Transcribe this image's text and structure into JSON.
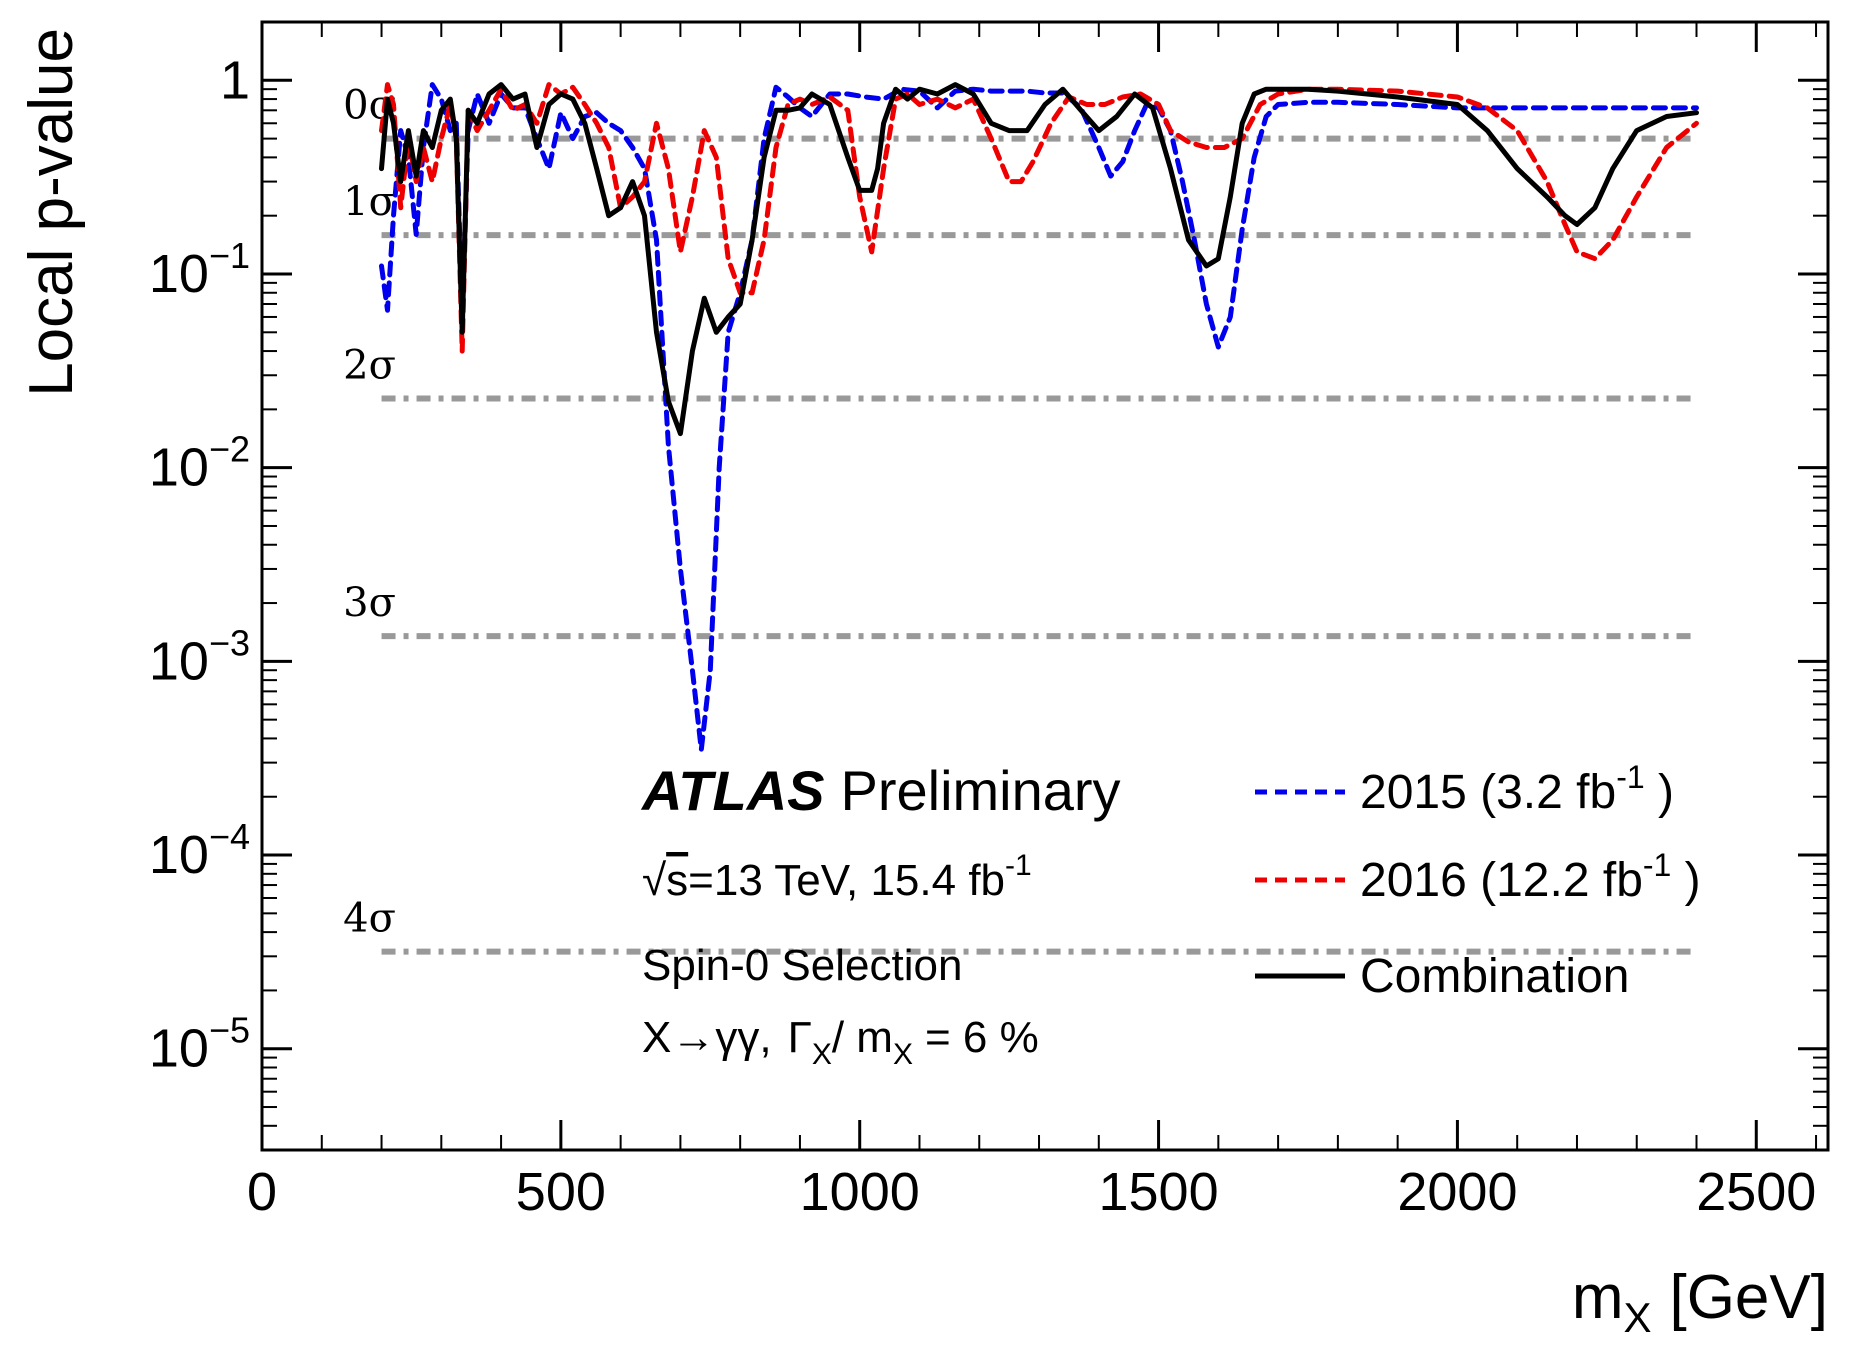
{
  "chart_data": {
    "type": "line",
    "xlabel_main": "m",
    "xlabel_sub": "X",
    "xlabel_unit": "[GeV]",
    "ylabel": "Local p-value",
    "xlim": [
      0,
      2620
    ],
    "ylim": [
      3e-06,
      2
    ],
    "yscale": "log",
    "x_ticks": [
      0,
      500,
      1000,
      1500,
      2000,
      2500
    ],
    "x_tick_labels": [
      "0",
      "500",
      "1000",
      "1500",
      "2000",
      "2500"
    ],
    "y_major": [
      {
        "value": 1,
        "base": "1",
        "exp": ""
      },
      {
        "value": 0.1,
        "base": "10",
        "exp": "−1"
      },
      {
        "value": 0.01,
        "base": "10",
        "exp": "−2"
      },
      {
        "value": 0.001,
        "base": "10",
        "exp": "−3"
      },
      {
        "value": 0.0001,
        "base": "10",
        "exp": "−4"
      },
      {
        "value": 1e-05,
        "base": "10",
        "exp": "−5"
      }
    ],
    "sigma_lines": [
      {
        "label": "0σ",
        "p": 0.5
      },
      {
        "label": "1σ",
        "p": 0.1587
      },
      {
        "label": "2σ",
        "p": 0.02275
      },
      {
        "label": "3σ",
        "p": 0.00135
      },
      {
        "label": "4σ",
        "p": 3.17e-05
      }
    ],
    "grid": false,
    "legend_position": "bottom-right",
    "series": [
      {
        "name": "2015 (3.2 fb",
        "name_sup": "-1",
        "name_suffix": " )",
        "color": "#0000ee",
        "style": "dashed",
        "x": [
          200,
          210,
          220,
          232,
          245,
          258,
          270,
          285,
          300,
          315,
          325,
          335,
          345,
          360,
          380,
          400,
          420,
          440,
          460,
          480,
          500,
          520,
          540,
          560,
          580,
          600,
          620,
          640,
          660,
          680,
          700,
          720,
          735,
          750,
          765,
          780,
          800,
          820,
          840,
          860,
          880,
          900,
          920,
          950,
          980,
          1010,
          1040,
          1070,
          1100,
          1130,
          1160,
          1190,
          1220,
          1250,
          1280,
          1310,
          1340,
          1370,
          1400,
          1420,
          1440,
          1460,
          1480,
          1500,
          1520,
          1540,
          1560,
          1580,
          1600,
          1620,
          1640,
          1660,
          1680,
          1700,
          1750,
          1800,
          1900,
          2000,
          2050,
          2100,
          2200,
          2300,
          2400
        ],
        "values": [
          0.11,
          0.065,
          0.2,
          0.55,
          0.4,
          0.16,
          0.45,
          0.95,
          0.8,
          0.55,
          0.6,
          0.06,
          0.55,
          0.85,
          0.6,
          0.85,
          0.72,
          0.72,
          0.5,
          0.35,
          0.68,
          0.5,
          0.65,
          0.68,
          0.6,
          0.55,
          0.45,
          0.35,
          0.15,
          0.013,
          0.003,
          0.0009,
          0.00035,
          0.0009,
          0.01,
          0.05,
          0.08,
          0.15,
          0.5,
          0.92,
          0.82,
          0.72,
          0.65,
          0.85,
          0.85,
          0.82,
          0.8,
          0.9,
          0.88,
          0.72,
          0.88,
          0.9,
          0.88,
          0.88,
          0.88,
          0.86,
          0.86,
          0.72,
          0.45,
          0.32,
          0.38,
          0.55,
          0.75,
          0.72,
          0.55,
          0.3,
          0.15,
          0.07,
          0.042,
          0.06,
          0.17,
          0.4,
          0.65,
          0.75,
          0.77,
          0.77,
          0.75,
          0.72,
          0.72,
          0.72,
          0.72,
          0.72,
          0.72
        ]
      },
      {
        "name": "2016 (12.2 fb",
        "name_sup": "-1",
        "name_suffix": " )",
        "color": "#ee0000",
        "style": "dashed",
        "x": [
          200,
          210,
          220,
          232,
          245,
          258,
          270,
          285,
          300,
          315,
          325,
          335,
          345,
          360,
          380,
          400,
          420,
          440,
          460,
          480,
          500,
          520,
          540,
          560,
          580,
          600,
          620,
          640,
          660,
          680,
          700,
          720,
          740,
          760,
          780,
          800,
          820,
          840,
          860,
          880,
          900,
          920,
          950,
          980,
          1000,
          1020,
          1040,
          1060,
          1080,
          1100,
          1130,
          1160,
          1190,
          1220,
          1250,
          1270,
          1290,
          1320,
          1350,
          1380,
          1410,
          1440,
          1470,
          1500,
          1520,
          1550,
          1580,
          1610,
          1640,
          1670,
          1700,
          1750,
          1800,
          1900,
          2000,
          2050,
          2100,
          2150,
          2180,
          2200,
          2230,
          2260,
          2300,
          2350,
          2400
        ],
        "values": [
          0.55,
          0.95,
          0.75,
          0.22,
          0.5,
          0.3,
          0.45,
          0.3,
          0.5,
          0.75,
          0.5,
          0.04,
          0.7,
          0.55,
          0.7,
          0.9,
          0.7,
          0.75,
          0.6,
          0.95,
          0.85,
          0.92,
          0.75,
          0.6,
          0.45,
          0.22,
          0.25,
          0.3,
          0.6,
          0.35,
          0.13,
          0.25,
          0.55,
          0.4,
          0.12,
          0.08,
          0.08,
          0.15,
          0.45,
          0.75,
          0.8,
          0.75,
          0.82,
          0.7,
          0.25,
          0.13,
          0.35,
          0.8,
          0.85,
          0.75,
          0.8,
          0.72,
          0.8,
          0.5,
          0.3,
          0.3,
          0.38,
          0.6,
          0.82,
          0.75,
          0.75,
          0.82,
          0.85,
          0.75,
          0.55,
          0.48,
          0.45,
          0.45,
          0.5,
          0.75,
          0.85,
          0.9,
          0.9,
          0.88,
          0.82,
          0.72,
          0.55,
          0.3,
          0.18,
          0.13,
          0.12,
          0.15,
          0.25,
          0.45,
          0.6
        ]
      },
      {
        "name": "Combination",
        "name_sup": "",
        "name_suffix": "",
        "color": "#000000",
        "style": "solid",
        "x": [
          200,
          210,
          220,
          232,
          245,
          258,
          270,
          285,
          300,
          315,
          325,
          335,
          345,
          360,
          380,
          400,
          420,
          440,
          460,
          480,
          500,
          520,
          540,
          560,
          580,
          600,
          620,
          640,
          660,
          680,
          700,
          720,
          740,
          760,
          780,
          800,
          820,
          840,
          860,
          880,
          900,
          920,
          950,
          980,
          1000,
          1020,
          1030,
          1040,
          1060,
          1080,
          1100,
          1130,
          1160,
          1190,
          1220,
          1250,
          1280,
          1310,
          1340,
          1370,
          1400,
          1430,
          1460,
          1490,
          1520,
          1550,
          1580,
          1600,
          1620,
          1640,
          1660,
          1680,
          1700,
          1750,
          1800,
          1900,
          2000,
          2050,
          2100,
          2150,
          2180,
          2200,
          2230,
          2260,
          2300,
          2350,
          2400
        ],
        "values": [
          0.35,
          0.8,
          0.6,
          0.3,
          0.55,
          0.32,
          0.55,
          0.45,
          0.7,
          0.8,
          0.5,
          0.05,
          0.7,
          0.6,
          0.85,
          0.95,
          0.8,
          0.85,
          0.45,
          0.75,
          0.85,
          0.8,
          0.6,
          0.35,
          0.2,
          0.22,
          0.3,
          0.2,
          0.05,
          0.022,
          0.015,
          0.04,
          0.075,
          0.05,
          0.06,
          0.07,
          0.15,
          0.4,
          0.7,
          0.7,
          0.72,
          0.85,
          0.75,
          0.4,
          0.27,
          0.27,
          0.35,
          0.6,
          0.9,
          0.8,
          0.9,
          0.85,
          0.95,
          0.85,
          0.6,
          0.55,
          0.55,
          0.75,
          0.9,
          0.7,
          0.55,
          0.65,
          0.85,
          0.72,
          0.35,
          0.15,
          0.11,
          0.12,
          0.25,
          0.6,
          0.85,
          0.9,
          0.9,
          0.9,
          0.88,
          0.82,
          0.75,
          0.55,
          0.35,
          0.25,
          0.2,
          0.18,
          0.22,
          0.35,
          0.55,
          0.65,
          0.68
        ]
      }
    ]
  },
  "annotations": {
    "brand": "ATLAS",
    "brand_suffix": "Preliminary",
    "energy_root": "√",
    "energy_s": "s",
    "energy_text": "=13 TeV, 15.4 fb",
    "energy_sup": "-1",
    "selection": "Spin-0 Selection",
    "process": "X→γγ,",
    "width_gamma": "Γ",
    "width_sub1": "X",
    "width_mid": "/ m",
    "width_sub2": "X",
    "width_value": "= 6 %"
  },
  "colors": {
    "sigma_line": "#999999",
    "axis": "#000000"
  }
}
